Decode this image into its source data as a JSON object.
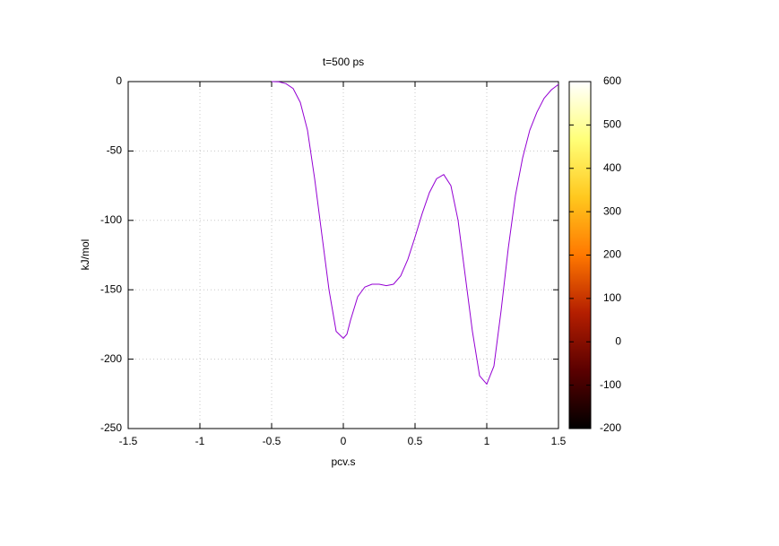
{
  "chart_data": {
    "type": "line",
    "title": "t=500 ps",
    "x_label": "pcv.s",
    "y_label": "kJ/mol",
    "x": [
      -0.5,
      -0.45,
      -0.4,
      -0.35,
      -0.3,
      -0.25,
      -0.2,
      -0.15,
      -0.1,
      -0.05,
      0,
      0.025,
      0.05,
      0.1,
      0.15,
      0.2,
      0.25,
      0.3,
      0.35,
      0.4,
      0.45,
      0.5,
      0.55,
      0.6,
      0.65,
      0.7,
      0.75,
      0.8,
      0.85,
      0.9,
      0.95,
      1.0,
      1.05,
      1.1,
      1.15,
      1.2,
      1.25,
      1.3,
      1.35,
      1.4,
      1.45,
      1.5
    ],
    "series": [
      {
        "color": "#9400d3",
        "values": [
          0,
          -0.2,
          -1.5,
          -5,
          -15,
          -35,
          -70,
          -110,
          -150,
          -180,
          -185,
          -182,
          -172,
          -155,
          -148,
          -146,
          -146,
          -147,
          -146,
          -140,
          -128,
          -112,
          -95,
          -80,
          -70,
          -67,
          -75,
          -100,
          -140,
          -180,
          -212,
          -218,
          -205,
          -165,
          -120,
          -82,
          -55,
          -35,
          -22,
          -12,
          -6,
          -2
        ]
      }
    ],
    "xlim": [
      -1.5,
      1.5
    ],
    "xticks": [
      -1.5,
      -1,
      -0.5,
      0,
      0.5,
      1,
      1.5
    ],
    "ylim": [
      -250,
      0
    ],
    "yticks": [
      0,
      -50,
      -100,
      -150,
      -200,
      -250
    ],
    "grid": true,
    "colorbar": {
      "lim": [
        -200,
        600
      ],
      "ticks": [
        600,
        500,
        400,
        300,
        200,
        100,
        0,
        -100,
        -200
      ],
      "palette": [
        "#000000",
        "#5a0000",
        "#b41e00",
        "#ff7800",
        "#ffc81e",
        "#ffff78",
        "#ffffff"
      ]
    }
  }
}
